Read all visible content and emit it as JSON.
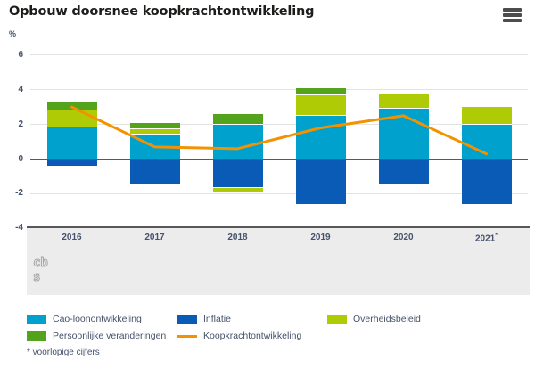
{
  "header": {
    "title": "Opbouw doorsnee koopkrachtontwikkeling"
  },
  "chart_data": {
    "type": "bar",
    "stacked": true,
    "line_overlay": true,
    "title": "Opbouw doorsnee koopkrachtontwikkeling",
    "ylabel": "%",
    "xlabel": "",
    "categories": [
      "2016",
      "2017",
      "2018",
      "2019",
      "2020",
      "2021*"
    ],
    "series": [
      {
        "name": "Cao-loonontwikkeling",
        "color": "#00a1cd",
        "values": [
          1.8,
          1.4,
          2.0,
          2.5,
          2.9,
          2.0
        ]
      },
      {
        "name": "Inflatie",
        "color": "#0a5bb5",
        "values": [
          -0.4,
          -1.4,
          -1.6,
          -2.6,
          -1.4,
          -2.6
        ]
      },
      {
        "name": "Overheidsbeleid",
        "color": "#afcb05",
        "values": [
          1.0,
          0.3,
          -0.3,
          1.2,
          0.9,
          1.0
        ]
      },
      {
        "name": "Persoonlijke veranderingen",
        "color": "#53a31d",
        "values": [
          0.5,
          0.4,
          0.6,
          0.4,
          0,
          0
        ]
      }
    ],
    "line_series": {
      "name": "Koopkrachtontwikkeling",
      "color": "#f39200",
      "values": [
        3.0,
        0.7,
        0.6,
        1.8,
        2.5,
        0.3
      ]
    },
    "yticks": [
      6,
      4,
      2,
      0,
      -2,
      -4
    ],
    "ylim": [
      -4,
      7
    ],
    "grid": true,
    "legend_position": "bottom",
    "source_logo": "cbs"
  },
  "footnote": "* voorlopige cijfers",
  "colors": {
    "axis_line": "#58585a",
    "gridline": "#e3e3e3",
    "band_background": "#ececec",
    "label_text": "#45526b",
    "title_text": "#1d1d1b"
  }
}
